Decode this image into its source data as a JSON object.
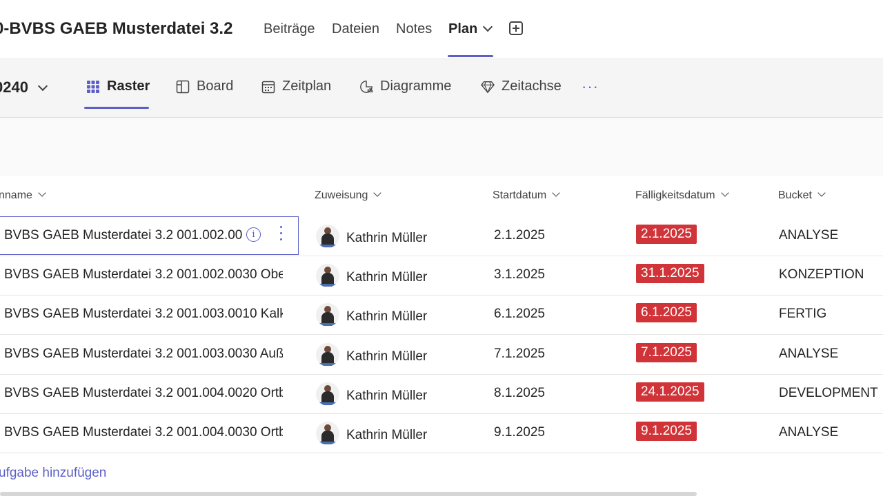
{
  "header": {
    "title": "0-BVBS GAEB Musterdatei 3.2",
    "tabs": [
      {
        "label": "Beiträge"
      },
      {
        "label": "Dateien"
      },
      {
        "label": "Notes"
      },
      {
        "label": "Plan"
      }
    ],
    "active_tab": "Plan"
  },
  "viewbar": {
    "plan_selector": "0240",
    "views": [
      {
        "label": "Raster",
        "icon": "grid-icon"
      },
      {
        "label": "Board",
        "icon": "board-icon"
      },
      {
        "label": "Zeitplan",
        "icon": "calendar-icon"
      },
      {
        "label": "Diagramme",
        "icon": "chart-icon"
      },
      {
        "label": "Zeitachse",
        "icon": "diamond-icon"
      }
    ],
    "active_view": "Raster",
    "more": "···"
  },
  "grid": {
    "columns": {
      "task": "nname",
      "assignee": "Zuweisung",
      "start": "Startdatum",
      "due": "Fälligkeitsdatum",
      "bucket": "Bucket"
    },
    "rows": [
      {
        "task": "BVBS GAEB Musterdatei 3.2 001.002.00",
        "assignee": "Kathrin Müller",
        "start": "2.1.2025",
        "due": "2.1.2025",
        "bucket": "ANALYSE"
      },
      {
        "task": "BVBS GAEB Musterdatei 3.2 001.002.0030 Obe",
        "assignee": "Kathrin Müller",
        "start": "3.1.2025",
        "due": "31.1.2025",
        "bucket": "KONZEPTION"
      },
      {
        "task": "BVBS GAEB Musterdatei 3.2 001.003.0010 Kalk",
        "assignee": "Kathrin Müller",
        "start": "6.1.2025",
        "due": "6.1.2025",
        "bucket": "FERTIG"
      },
      {
        "task": "BVBS GAEB Musterdatei 3.2 001.003.0030 Auß",
        "assignee": "Kathrin Müller",
        "start": "7.1.2025",
        "due": "7.1.2025",
        "bucket": "ANALYSE"
      },
      {
        "task": "BVBS GAEB Musterdatei 3.2 001.004.0020 Ortb",
        "assignee": "Kathrin Müller",
        "start": "8.1.2025",
        "due": "24.1.2025",
        "bucket": "DEVELOPMENT"
      },
      {
        "task": "BVBS GAEB Musterdatei 3.2 001.004.0030 Ortb",
        "assignee": "Kathrin Müller",
        "start": "9.1.2025",
        "due": "9.1.2025",
        "bucket": "ANALYSE"
      }
    ],
    "add_task": "ufgabe hinzufügen"
  },
  "colors": {
    "accent": "#5b5fc7",
    "overdue": "#d13438"
  }
}
